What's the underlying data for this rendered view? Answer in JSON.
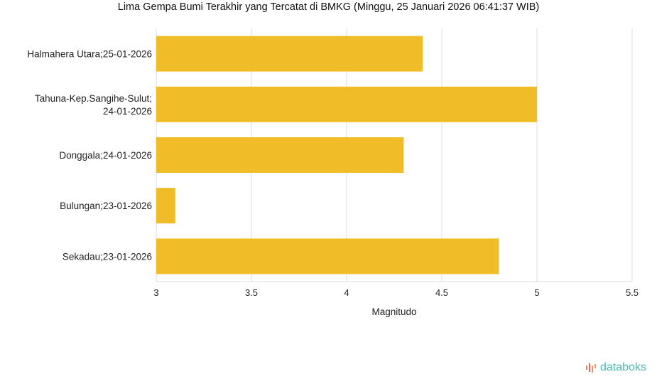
{
  "chart_data": {
    "type": "bar",
    "orientation": "horizontal",
    "title": "Lima Gempa Bumi Terakhir yang Tercatat di BMKG (Minggu, 25 Januari 2026 06:41:37 WIB)",
    "categories": [
      [
        "Halmahera Utara;25-01-2026"
      ],
      [
        "Tahuna-Kep.Sangihe-Sulut;",
        "24-01-2026"
      ],
      [
        "Donggala;24-01-2026"
      ],
      [
        "Bulungan;23-01-2026"
      ],
      [
        "Sekadau;23-01-2026"
      ]
    ],
    "values": [
      4.4,
      5.0,
      4.3,
      3.1,
      4.8
    ],
    "xlabel": "Magnitudo",
    "xlim": [
      3,
      5.5
    ],
    "xticks": [
      "3",
      "3.5",
      "4",
      "4.5",
      "5",
      "5.5"
    ],
    "grid": true,
    "bar_color": "#f0bd28"
  },
  "brand": {
    "name": "databoks",
    "color": "#4bb8b0"
  }
}
